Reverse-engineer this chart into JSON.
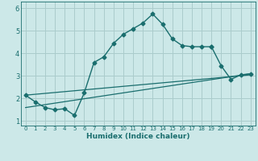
{
  "title": "",
  "xlabel": "Humidex (Indice chaleur)",
  "background_color": "#cce8e8",
  "grid_color": "#aacccc",
  "line_color": "#1a6e6e",
  "xlim": [
    -0.5,
    23.5
  ],
  "ylim": [
    0.8,
    6.3
  ],
  "xticks": [
    0,
    1,
    2,
    3,
    4,
    5,
    6,
    7,
    8,
    9,
    10,
    11,
    12,
    13,
    14,
    15,
    16,
    17,
    18,
    19,
    20,
    21,
    22,
    23
  ],
  "yticks": [
    1,
    2,
    3,
    4,
    5,
    6
  ],
  "series": [
    {
      "x": [
        0,
        1,
        2,
        3,
        4,
        5,
        6,
        7,
        8,
        9,
        10,
        11,
        12,
        13,
        14,
        15,
        16,
        17,
        18,
        19
      ],
      "y": [
        2.15,
        1.85,
        1.6,
        1.5,
        1.55,
        1.25,
        2.25,
        3.6,
        3.85,
        4.45,
        4.85,
        5.1,
        5.35,
        5.75,
        5.3,
        4.65,
        4.35,
        4.3,
        4.3,
        4.3
      ],
      "marker": "D",
      "markersize": 2.5,
      "linewidth": 1.0
    },
    {
      "x": [
        19,
        20,
        21,
        22,
        23
      ],
      "y": [
        4.3,
        3.45,
        2.85,
        3.05,
        3.1
      ],
      "marker": "D",
      "markersize": 2.5,
      "linewidth": 1.0
    },
    {
      "x": [
        0,
        23
      ],
      "y": [
        1.6,
        3.1
      ],
      "marker": null,
      "markersize": 0,
      "linewidth": 0.9
    },
    {
      "x": [
        0,
        23
      ],
      "y": [
        2.15,
        3.05
      ],
      "marker": null,
      "markersize": 0,
      "linewidth": 0.9
    }
  ]
}
